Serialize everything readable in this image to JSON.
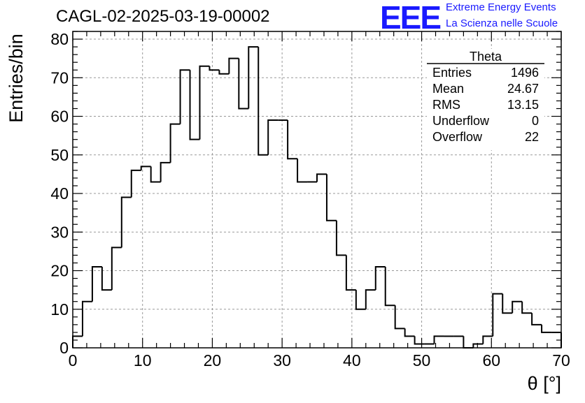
{
  "title": "CAGL-02-2025-03-19-00002",
  "logo": {
    "mark": "EEE",
    "line1": "Extreme Energy Events",
    "line2": "La Scienza nelle Scuole",
    "color": "#1a1aff"
  },
  "stats_box": {
    "name": "Theta",
    "rows": [
      {
        "label": "Entries",
        "value": "1496"
      },
      {
        "label": "Mean",
        "value": "24.67"
      },
      {
        "label": "RMS",
        "value": "13.15"
      },
      {
        "label": "Underflow",
        "value": "0"
      },
      {
        "label": "Overflow",
        "value": "22"
      }
    ]
  },
  "chart_data": {
    "type": "bar",
    "style": "step-histogram",
    "xlabel": "θ [°]",
    "ylabel": "Entries/bin",
    "xlim": [
      0,
      70
    ],
    "ylim": [
      0,
      82
    ],
    "grid": true,
    "x_ticks": [
      "0",
      "10",
      "20",
      "30",
      "40",
      "50",
      "60",
      "70"
    ],
    "y_ticks": [
      "0",
      "10",
      "20",
      "30",
      "40",
      "50",
      "60",
      "70",
      "80"
    ],
    "bin_width": 1.4,
    "x": [
      0,
      1.4,
      2.8,
      4.2,
      5.6,
      7.0,
      8.4,
      9.8,
      11.2,
      12.6,
      14.0,
      15.4,
      16.8,
      18.2,
      19.6,
      21.0,
      22.4,
      23.8,
      25.2,
      26.6,
      28.0,
      29.4,
      30.8,
      32.2,
      33.6,
      35.0,
      36.4,
      37.8,
      39.2,
      40.6,
      42.0,
      43.4,
      44.8,
      46.2,
      47.6,
      49.0,
      50.4,
      51.8,
      53.2,
      54.6,
      56.0,
      57.4,
      58.8,
      60.2,
      61.6,
      63.0,
      64.4,
      65.8,
      67.2,
      68.6
    ],
    "values": [
      3,
      12,
      21,
      15,
      26,
      39,
      46,
      47,
      43,
      48,
      58,
      72,
      54,
      73,
      72,
      71,
      75,
      62,
      78,
      50,
      59,
      59,
      49,
      43,
      43,
      45,
      33,
      24,
      15,
      10,
      15,
      21,
      11,
      5,
      3,
      1,
      1,
      3,
      3,
      3,
      0,
      1,
      3,
      14,
      9,
      12,
      9,
      6,
      4,
      4
    ]
  }
}
